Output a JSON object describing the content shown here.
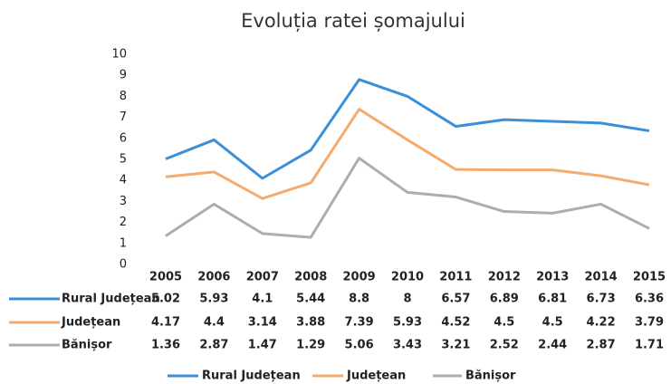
{
  "chart_data": {
    "type": "line",
    "title": "Evoluția ratei șomajului",
    "categories": [
      "2005",
      "2006",
      "2007",
      "2008",
      "2009",
      "2010",
      "2011",
      "2012",
      "2013",
      "2014",
      "2015"
    ],
    "series": [
      {
        "name": "Rural Județean",
        "color": "#3b8fd9",
        "values": [
          5.02,
          5.93,
          4.1,
          5.44,
          8.8,
          8,
          6.57,
          6.89,
          6.81,
          6.73,
          6.36
        ]
      },
      {
        "name": "Județean",
        "color": "#f6ab6e",
        "values": [
          4.17,
          4.4,
          3.14,
          3.88,
          7.39,
          5.93,
          4.52,
          4.5,
          4.5,
          4.22,
          3.79
        ]
      },
      {
        "name": "Bănișor",
        "color": "#adadad",
        "values": [
          1.36,
          2.87,
          1.47,
          1.29,
          5.06,
          3.43,
          3.21,
          2.52,
          2.44,
          2.87,
          1.71
        ]
      }
    ],
    "ylim": [
      0,
      10
    ],
    "yticks": [
      0,
      1,
      2,
      3,
      4,
      5,
      6,
      7,
      8,
      9,
      10
    ],
    "grid": false
  }
}
